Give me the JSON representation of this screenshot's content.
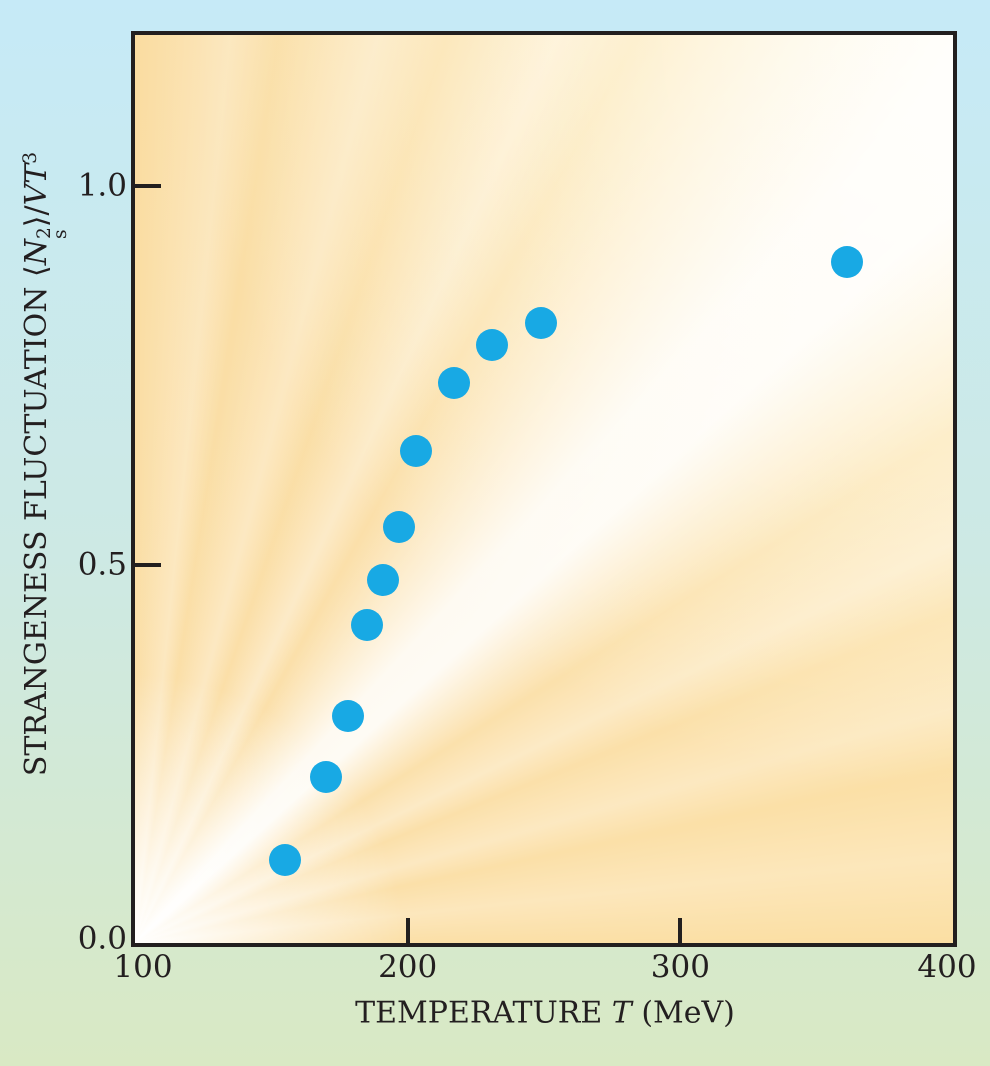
{
  "figure": {
    "outer_bg_top": "#c6eaf7",
    "outer_bg_bottom": "#d9e9c4",
    "plot_bg_base": "#fbdfa5",
    "border_color": "#221f1f",
    "marker_color": "#18a9e4",
    "text_color": "#231f20"
  },
  "labels": {
    "y_prefix": "STRANGENESS FLUCTUATION ⟨",
    "y_symbol": "N",
    "y_sup": "2",
    "y_sub": "s",
    "y_mid": "⟩/",
    "y_vt": "VT",
    "y_exp": "3",
    "x_prefix": "TEMPERATURE ",
    "x_symbol": "T",
    "x_suffix": " (MeV)"
  },
  "chart_data": {
    "type": "scatter",
    "title": "",
    "xlabel": "TEMPERATURE T (MeV)",
    "ylabel": "STRANGENESS FLUCTUATION ⟨N_s^2⟩/VT^3",
    "xlim": [
      100,
      400
    ],
    "ylim": [
      0,
      1.2
    ],
    "grid": false,
    "legend_position": "none",
    "x_tick_values": [
      100,
      200,
      300,
      400
    ],
    "x_tick_labels": [
      "100",
      "200",
      "300",
      "400"
    ],
    "x_ticks_marked": [
      200,
      300
    ],
    "y_tick_values": [
      0,
      0.5,
      1.0
    ],
    "y_tick_labels": [
      "0.0",
      "0.5",
      "1.0"
    ],
    "y_ticks_marked": [
      0.5,
      1.0
    ],
    "series": [
      {
        "name": "strangeness-fluctuation",
        "marker": "circle",
        "marker_diameter_px": 32,
        "color": "#18a9e4",
        "points": [
          {
            "x": 155,
            "y": 0.11
          },
          {
            "x": 170,
            "y": 0.22
          },
          {
            "x": 178,
            "y": 0.3
          },
          {
            "x": 185,
            "y": 0.42
          },
          {
            "x": 191,
            "y": 0.48
          },
          {
            "x": 197,
            "y": 0.55
          },
          {
            "x": 203,
            "y": 0.65
          },
          {
            "x": 217,
            "y": 0.74
          },
          {
            "x": 231,
            "y": 0.79
          },
          {
            "x": 249,
            "y": 0.82
          },
          {
            "x": 361,
            "y": 0.9
          }
        ]
      }
    ]
  }
}
